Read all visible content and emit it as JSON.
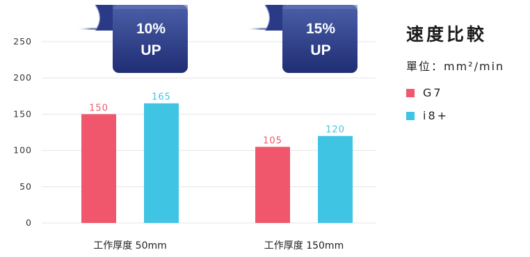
{
  "chart_data": {
    "type": "bar",
    "title": "速度比較",
    "unit_label": "單位：mm²/min",
    "categories": [
      "工作厚度 50mm",
      "工作厚度 150mm"
    ],
    "series": [
      {
        "name": "G7",
        "color": "#f0576c",
        "values": [
          150,
          105
        ]
      },
      {
        "name": "i8+",
        "color": "#40c4e4",
        "values": [
          165,
          120
        ]
      }
    ],
    "ylim": [
      0,
      250
    ],
    "yticks": [
      0,
      50,
      100,
      150,
      200,
      250
    ],
    "grid": true,
    "legend_position": "right",
    "annotations": [
      {
        "category": "工作厚度 50mm",
        "line1": "10%",
        "line2": "UP"
      },
      {
        "category": "工作厚度 150mm",
        "line1": "15%",
        "line2": "UP"
      }
    ]
  }
}
